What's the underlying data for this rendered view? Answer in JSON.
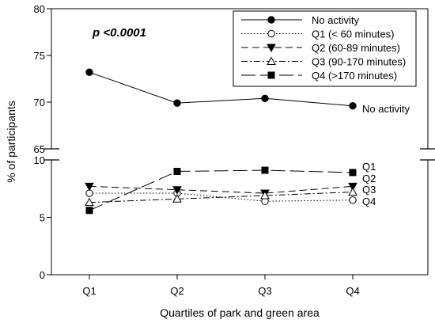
{
  "chart_data": {
    "type": "line",
    "annotation": "p <0.0001",
    "xlabel": "Quartiles of park and green area",
    "ylabel": "% of participants",
    "categories": [
      "Q1",
      "Q2",
      "Q3",
      "Q4"
    ],
    "axis_break": {
      "lower": 10,
      "upper": 65
    },
    "ylim_lower": [
      0,
      10
    ],
    "ylim_upper": [
      65,
      80
    ],
    "yticks_lower": [
      "0",
      "5",
      "10"
    ],
    "yticks_upper": [
      "65",
      "70",
      "75",
      "80"
    ],
    "grid": false,
    "legend_position": "top-right",
    "series": [
      {
        "name": "No activity",
        "legend": "No activity",
        "end_label": "No activity",
        "marker": "circle-filled",
        "dash": "",
        "color": "#000000",
        "values": [
          73.2,
          69.9,
          70.4,
          69.6
        ]
      },
      {
        "name": "Q1",
        "legend": "Q1 (< 60 minutes)",
        "end_label": "Q1",
        "marker": "circle-open",
        "dash": "1.5,2.5",
        "color": "#000000",
        "values": [
          7.1,
          7.1,
          6.4,
          6.5
        ]
      },
      {
        "name": "Q2",
        "legend": "Q2 (60-89 minutes)",
        "end_label": "Q2",
        "marker": "triangle-down-filled",
        "dash": "9,5",
        "color": "#000000",
        "values": [
          7.7,
          7.4,
          7.1,
          7.7
        ]
      },
      {
        "name": "Q3",
        "legend": "Q3 (90-170 minutes)",
        "end_label": "Q3",
        "marker": "triangle-up-open",
        "dash": "8,3,2,3",
        "color": "#000000",
        "values": [
          6.3,
          6.6,
          6.9,
          7.2
        ]
      },
      {
        "name": "Q4",
        "legend": "Q4 (>170 minutes)",
        "end_label": "Q4",
        "marker": "square-filled",
        "dash": "18,6",
        "color": "#000000",
        "values": [
          5.6,
          9.0,
          9.1,
          8.9
        ]
      }
    ]
  }
}
